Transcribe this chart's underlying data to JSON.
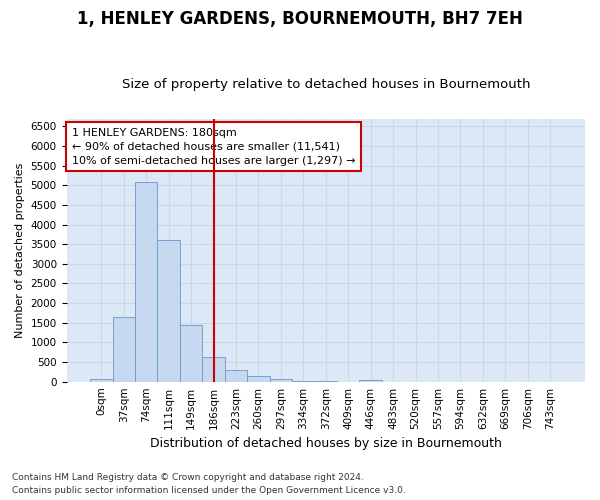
{
  "title": "1, HENLEY GARDENS, BOURNEMOUTH, BH7 7EH",
  "subtitle": "Size of property relative to detached houses in Bournemouth",
  "xlabel": "Distribution of detached houses by size in Bournemouth",
  "ylabel": "Number of detached properties",
  "footer_line1": "Contains HM Land Registry data © Crown copyright and database right 2024.",
  "footer_line2": "Contains public sector information licensed under the Open Government Licence v3.0.",
  "bar_labels": [
    "0sqm",
    "37sqm",
    "74sqm",
    "111sqm",
    "149sqm",
    "186sqm",
    "223sqm",
    "260sqm",
    "297sqm",
    "334sqm",
    "372sqm",
    "409sqm",
    "446sqm",
    "483sqm",
    "520sqm",
    "557sqm",
    "594sqm",
    "632sqm",
    "669sqm",
    "706sqm",
    "743sqm"
  ],
  "bar_values": [
    75,
    1650,
    5080,
    3600,
    1450,
    620,
    310,
    155,
    70,
    25,
    10,
    0,
    50,
    0,
    0,
    0,
    0,
    0,
    0,
    0,
    0
  ],
  "bar_color": "#c5d8ef",
  "bar_edge_color": "#6699cc",
  "vline_index": 5,
  "vline_color": "#cc0000",
  "annotation_text": "1 HENLEY GARDENS: 180sqm\n← 90% of detached houses are smaller (11,541)\n10% of semi-detached houses are larger (1,297) →",
  "annotation_box_facecolor": "#ffffff",
  "annotation_box_edgecolor": "#cc0000",
  "ylim": [
    0,
    6700
  ],
  "yticks": [
    0,
    500,
    1000,
    1500,
    2000,
    2500,
    3000,
    3500,
    4000,
    4500,
    5000,
    5500,
    6000,
    6500
  ],
  "grid_color": "#c8d8e8",
  "plot_bg_color": "#dce8f5",
  "fig_bg_color": "#ffffff",
  "title_fontsize": 12,
  "subtitle_fontsize": 9.5,
  "ylabel_fontsize": 8,
  "xlabel_fontsize": 9,
  "tick_fontsize": 7.5,
  "footer_fontsize": 6.5,
  "annot_fontsize": 8
}
